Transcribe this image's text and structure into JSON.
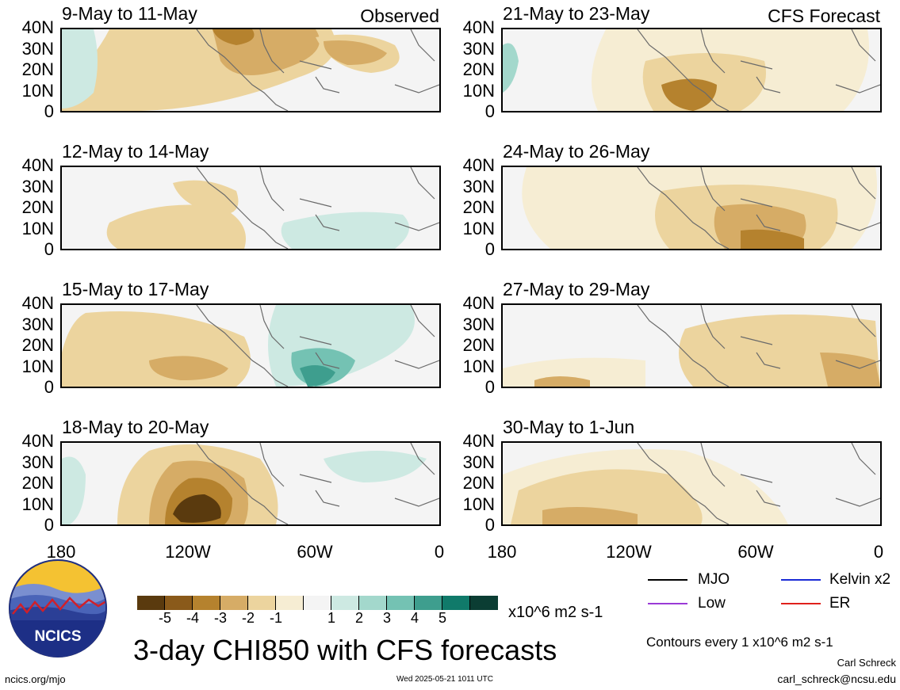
{
  "panels_left": [
    {
      "title": "9-May to 11-May",
      "corner": "Observed"
    },
    {
      "title": "12-May to 14-May",
      "corner": ""
    },
    {
      "title": "15-May to 17-May",
      "corner": ""
    },
    {
      "title": "18-May to 20-May",
      "corner": ""
    }
  ],
  "panels_right": [
    {
      "title": "21-May to 23-May",
      "corner": "CFS Forecast"
    },
    {
      "title": "24-May to 26-May",
      "corner": ""
    },
    {
      "title": "27-May to 29-May",
      "corner": ""
    },
    {
      "title": "30-May to 1-Jun",
      "corner": ""
    }
  ],
  "lat_labels": [
    "40N",
    "30N",
    "20N",
    "10N",
    "0"
  ],
  "lon_labels": [
    "180",
    "120W",
    "60W",
    "0"
  ],
  "colorbar": {
    "colors": [
      "#5a3a0e",
      "#8a5a1a",
      "#b5822e",
      "#d6ac66",
      "#ecd49e",
      "#f6edd3",
      "#f4f4f4",
      "#cde9e2",
      "#a3d8cc",
      "#74c2b3",
      "#3e9e8e",
      "#107a6a",
      "#0b3d33"
    ],
    "ticks": [
      "-5",
      "-4",
      "-3",
      "-2",
      "-1",
      "1",
      "2",
      "3",
      "4",
      "5"
    ],
    "units": "x10^6 m2 s-1"
  },
  "legend": {
    "items": [
      {
        "label": "MJO",
        "color": "#000000"
      },
      {
        "label": "Kelvin x2",
        "color": "#1a2bd6"
      },
      {
        "label": "Low",
        "color": "#9a3ad6"
      },
      {
        "label": "ER",
        "color": "#e0201c"
      }
    ],
    "contours_note": "Contours every 1 x10^6 m2 s-1"
  },
  "main_title": "3-day CHI850 with CFS forecasts",
  "logo_text": "NCICS",
  "footer": {
    "url": "ncics.org/mjo",
    "timestamp": "Wed 2025-05-21 1011 UTC",
    "author": "Carl Schreck",
    "email": "carl_schreck@ncsu.edu"
  }
}
